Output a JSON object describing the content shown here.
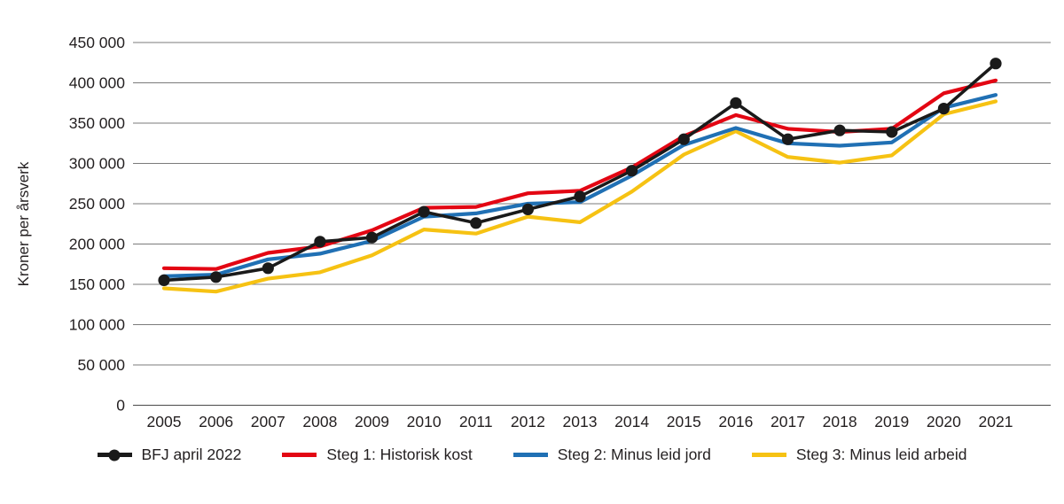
{
  "chart_data": {
    "type": "line",
    "title": "",
    "xlabel": "",
    "ylabel": "Kroner per årsverk",
    "x": [
      2005,
      2006,
      2007,
      2008,
      2009,
      2010,
      2011,
      2012,
      2013,
      2014,
      2015,
      2016,
      2017,
      2018,
      2019,
      2020,
      2021
    ],
    "ylim": [
      0,
      450000
    ],
    "ytick_step": 50000,
    "ytick_labels": [
      "0",
      "50 000",
      "100 000",
      "150 000",
      "200 000",
      "250 000",
      "300 000",
      "350 000",
      "400 000",
      "450 000"
    ],
    "grid": "horizontal-only",
    "legend_position": "bottom-center",
    "series": [
      {
        "name": "BFJ april 2022",
        "color": "#1a1a1a",
        "marker": "circle",
        "values": [
          155000,
          159000,
          170000,
          203000,
          208000,
          240000,
          226000,
          243000,
          259000,
          291000,
          330000,
          375000,
          330000,
          341000,
          339000,
          368000,
          424000
        ]
      },
      {
        "name": "Steg 1: Historisk kost",
        "color": "#e30613",
        "marker": "none",
        "values": [
          170000,
          169000,
          189000,
          197000,
          217000,
          245000,
          246000,
          263000,
          266000,
          295000,
          334000,
          360000,
          343000,
          339000,
          343000,
          387000,
          403000
        ]
      },
      {
        "name": "Steg 2: Minus leid jord",
        "color": "#2070b4",
        "marker": "none",
        "values": [
          160000,
          162000,
          181000,
          188000,
          204000,
          234000,
          238000,
          250000,
          252000,
          285000,
          323000,
          344000,
          325000,
          322000,
          326000,
          369000,
          385000
        ]
      },
      {
        "name": "Steg 3: Minus leid arbeid",
        "color": "#f6c213",
        "marker": "none",
        "values": [
          145000,
          141000,
          157000,
          165000,
          186000,
          218000,
          213000,
          234000,
          227000,
          265000,
          311000,
          340000,
          308000,
          301000,
          310000,
          361000,
          377000
        ]
      }
    ],
    "axis_colors": {
      "gridline": "#7b7b7b",
      "baseline": "#4a4a4a",
      "tick_text": "#231f20"
    }
  }
}
